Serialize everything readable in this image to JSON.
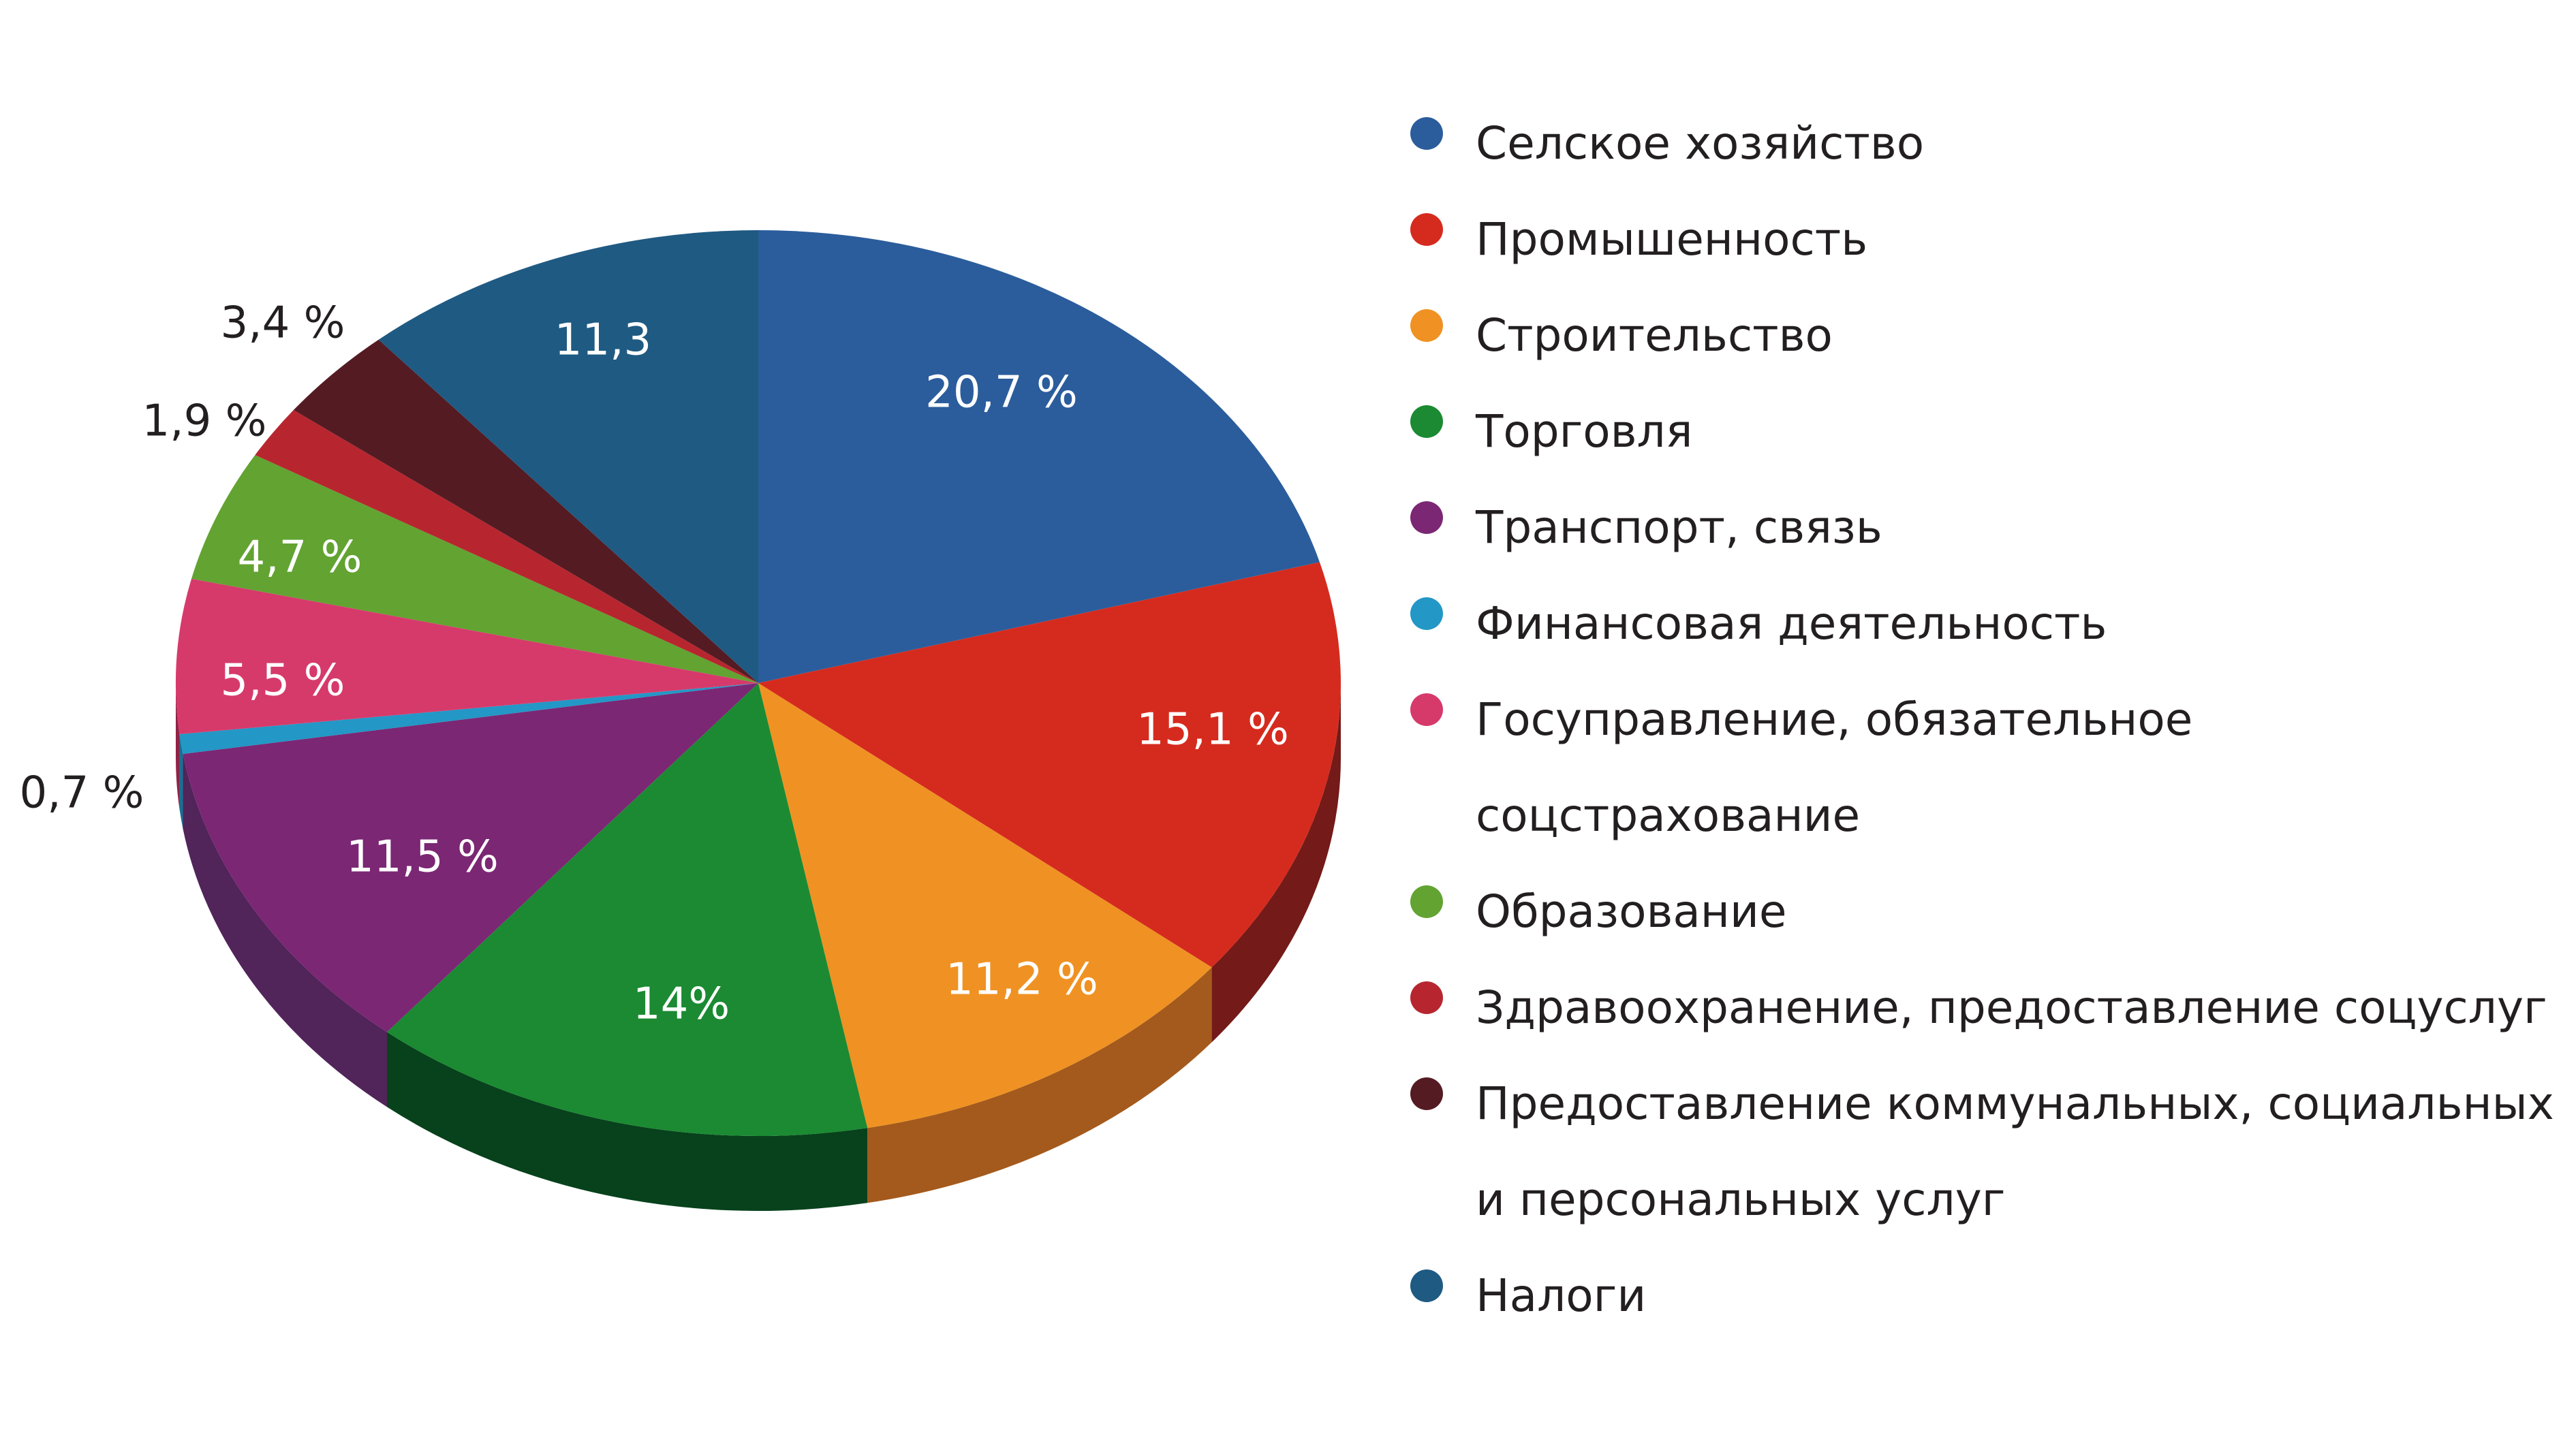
{
  "chart_data": {
    "type": "pie",
    "title": "",
    "legend_position": "right",
    "slices": [
      {
        "label": "Селское хозяйство",
        "value": 20.7,
        "display": "20,7 %",
        "color": "#2b5d9c",
        "side": "#1e416e",
        "label_color": "#ffffff"
      },
      {
        "label": "Промышенность",
        "value": 15.1,
        "display": "15,1 %",
        "color": "#d52b1e",
        "side": "#741a18",
        "label_color": "#ffffff"
      },
      {
        "label": "Строительство",
        "value": 11.2,
        "display": "11,2 %",
        "color": "#ef9223",
        "side": "#a45a1c",
        "label_color": "#ffffff"
      },
      {
        "label": "Торговля",
        "value": 14,
        "display": "14%",
        "color": "#1b8a32",
        "side": "#07421c",
        "label_color": "#ffffff"
      },
      {
        "label": "Транспорт, связь",
        "value": 11.5,
        "display": "11,5 %",
        "color": "#7b2774",
        "side": "#51245a",
        "label_color": "#ffffff"
      },
      {
        "label": "Финансовая деятельность",
        "value": 0.7,
        "display": "0,7 %",
        "color": "#2397c6",
        "side": "#1a6f92",
        "label_color": "#231f20"
      },
      {
        "label": "Госуправление, обязательное соцстрахование",
        "value": 5.5,
        "display": "5,5 %",
        "color": "#d63a6b",
        "side": "#8f2447",
        "label_color": "#ffffff"
      },
      {
        "label": "Образование",
        "value": 4.7,
        "display": "4,7 %",
        "color": "#62a332",
        "side": "#3f6e20",
        "label_color": "#ffffff"
      },
      {
        "label": "Здравоохранение, предоставление соцуслуг",
        "value": 1.9,
        "display": "1,9 %",
        "color": "#b7262f",
        "side": "#7a1a20",
        "label_color": "#231f20"
      },
      {
        "label": "Предоставление коммунальных, социальных и персональных услуг",
        "value": 3.4,
        "display": "3,4 %",
        "color": "#541b23",
        "side": "#331014",
        "label_color": "#231f20"
      },
      {
        "label": "Налоги",
        "value": 11.3,
        "display": "11,3",
        "color": "#1f5a82",
        "side": "#143c57",
        "label_color": "#ffffff"
      }
    ]
  }
}
